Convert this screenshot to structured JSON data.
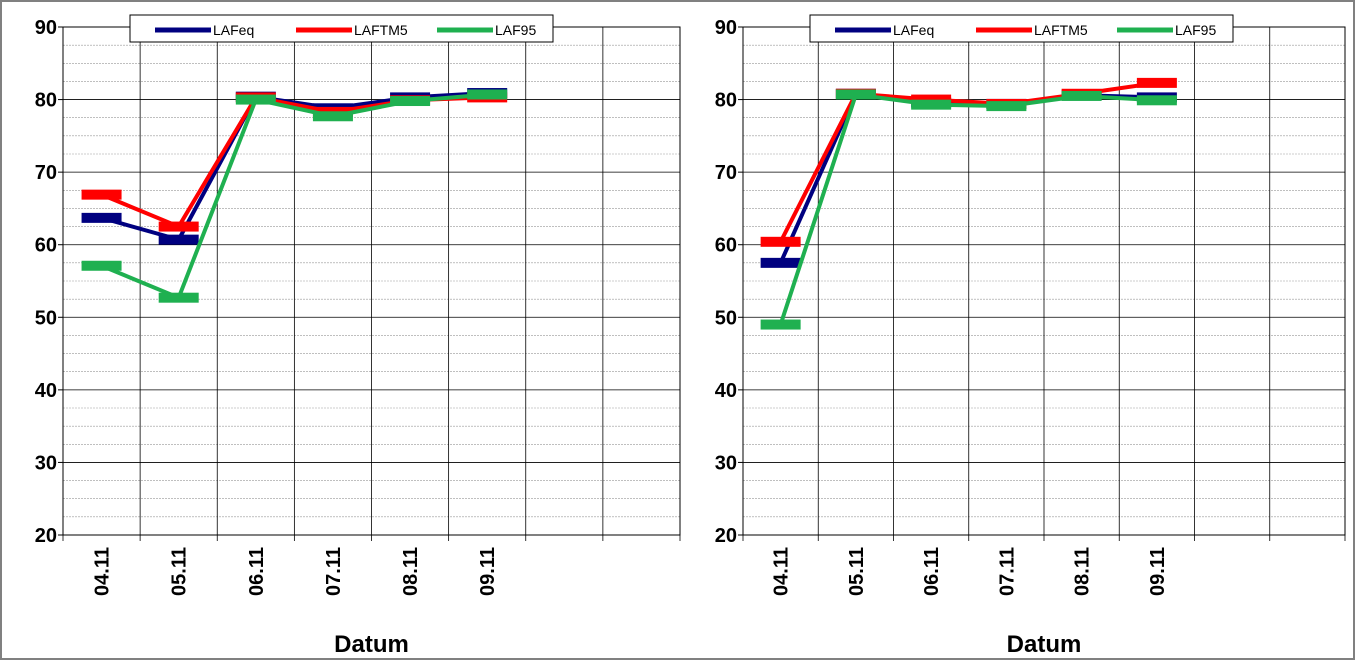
{
  "chart_data": [
    {
      "type": "line",
      "x_label": "Datum",
      "categories": [
        "04.11",
        "05.11",
        "06.11",
        "07.11",
        "08.11",
        "09.11",
        null,
        null
      ],
      "ylim": [
        20,
        90
      ],
      "yticks": [
        20,
        30,
        40,
        50,
        60,
        70,
        80,
        90
      ],
      "grid": true,
      "legend": "top",
      "series": [
        {
          "name": "LAFeq",
          "color": "#000080",
          "values": [
            63.7,
            60.7,
            80.4,
            78.8,
            80.3,
            80.9,
            null,
            null
          ]
        },
        {
          "name": "LAFTM5",
          "color": "#ff0000",
          "values": [
            66.9,
            62.5,
            80.3,
            78.3,
            79.9,
            80.3,
            null,
            null
          ]
        },
        {
          "name": "LAF95",
          "color": "#1fb050",
          "values": [
            57.1,
            52.7,
            80.0,
            77.7,
            79.8,
            80.7,
            null,
            null
          ]
        }
      ]
    },
    {
      "type": "line",
      "x_label": "Datum",
      "categories": [
        "04.11",
        "05.11",
        "06.11",
        "07.11",
        "08.11",
        "09.11",
        null,
        null
      ],
      "ylim": [
        20,
        90
      ],
      "yticks": [
        20,
        30,
        40,
        50,
        60,
        70,
        80,
        90
      ],
      "grid": true,
      "legend": "top",
      "series": [
        {
          "name": "LAFeq",
          "color": "#000080",
          "values": [
            57.5,
            80.8,
            79.6,
            79.4,
            80.6,
            80.3,
            null,
            null
          ]
        },
        {
          "name": "LAFTM5",
          "color": "#ff0000",
          "values": [
            60.4,
            80.8,
            80.0,
            79.4,
            80.8,
            82.3,
            null,
            null
          ]
        },
        {
          "name": "LAF95",
          "color": "#1fb050",
          "values": [
            49.0,
            80.7,
            79.3,
            79.1,
            80.5,
            79.9,
            null,
            null
          ]
        }
      ]
    }
  ]
}
